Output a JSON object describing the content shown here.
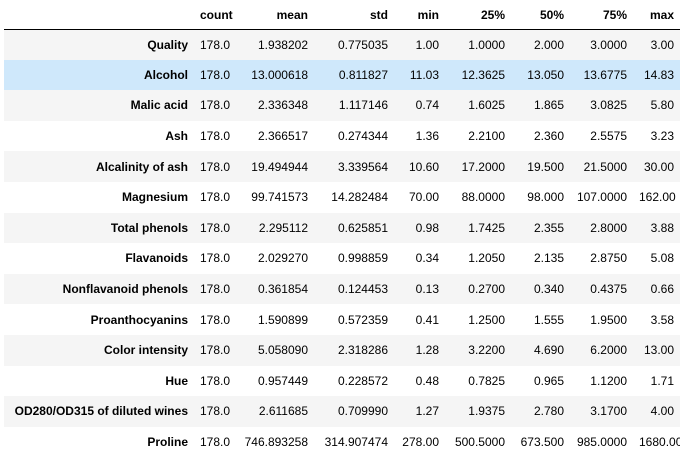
{
  "table": {
    "columns": [
      "count",
      "mean",
      "std",
      "min",
      "25%",
      "50%",
      "75%",
      "max"
    ],
    "hovered_row": "Alcohol",
    "rows": [
      {
        "label": "Quality",
        "values": [
          "178.0",
          "1.938202",
          "0.775035",
          "1.00",
          "1.0000",
          "2.000",
          "3.0000",
          "3.00"
        ]
      },
      {
        "label": "Alcohol",
        "values": [
          "178.0",
          "13.000618",
          "0.811827",
          "11.03",
          "12.3625",
          "13.050",
          "13.6775",
          "14.83"
        ]
      },
      {
        "label": "Malic acid",
        "values": [
          "178.0",
          "2.336348",
          "1.117146",
          "0.74",
          "1.6025",
          "1.865",
          "3.0825",
          "5.80"
        ]
      },
      {
        "label": "Ash",
        "values": [
          "178.0",
          "2.366517",
          "0.274344",
          "1.36",
          "2.2100",
          "2.360",
          "2.5575",
          "3.23"
        ]
      },
      {
        "label": "Alcalinity of ash",
        "values": [
          "178.0",
          "19.494944",
          "3.339564",
          "10.60",
          "17.2000",
          "19.500",
          "21.5000",
          "30.00"
        ]
      },
      {
        "label": "Magnesium",
        "values": [
          "178.0",
          "99.741573",
          "14.282484",
          "70.00",
          "88.0000",
          "98.000",
          "107.0000",
          "162.00"
        ]
      },
      {
        "label": "Total phenols",
        "values": [
          "178.0",
          "2.295112",
          "0.625851",
          "0.98",
          "1.7425",
          "2.355",
          "2.8000",
          "3.88"
        ]
      },
      {
        "label": "Flavanoids",
        "values": [
          "178.0",
          "2.029270",
          "0.998859",
          "0.34",
          "1.2050",
          "2.135",
          "2.8750",
          "5.08"
        ]
      },
      {
        "label": "Nonflavanoid phenols",
        "values": [
          "178.0",
          "0.361854",
          "0.124453",
          "0.13",
          "0.2700",
          "0.340",
          "0.4375",
          "0.66"
        ]
      },
      {
        "label": "Proanthocyanins",
        "values": [
          "178.0",
          "1.590899",
          "0.572359",
          "0.41",
          "1.2500",
          "1.555",
          "1.9500",
          "3.58"
        ]
      },
      {
        "label": "Color intensity",
        "values": [
          "178.0",
          "5.058090",
          "2.318286",
          "1.28",
          "3.2200",
          "4.690",
          "6.2000",
          "13.00"
        ]
      },
      {
        "label": "Hue",
        "values": [
          "178.0",
          "0.957449",
          "0.228572",
          "0.48",
          "0.7825",
          "0.965",
          "1.1200",
          "1.71"
        ]
      },
      {
        "label": "OD280/OD315 of diluted wines",
        "values": [
          "178.0",
          "2.611685",
          "0.709990",
          "1.27",
          "1.9375",
          "2.780",
          "3.1700",
          "4.00"
        ]
      },
      {
        "label": "Proline",
        "values": [
          "178.0",
          "746.893258",
          "314.907474",
          "278.00",
          "500.5000",
          "673.500",
          "985.0000",
          "1680.00"
        ]
      }
    ]
  },
  "colors": {
    "stripe": "#f5f5f5",
    "hover": "#cfe8fb",
    "header_rule": "#000000"
  }
}
